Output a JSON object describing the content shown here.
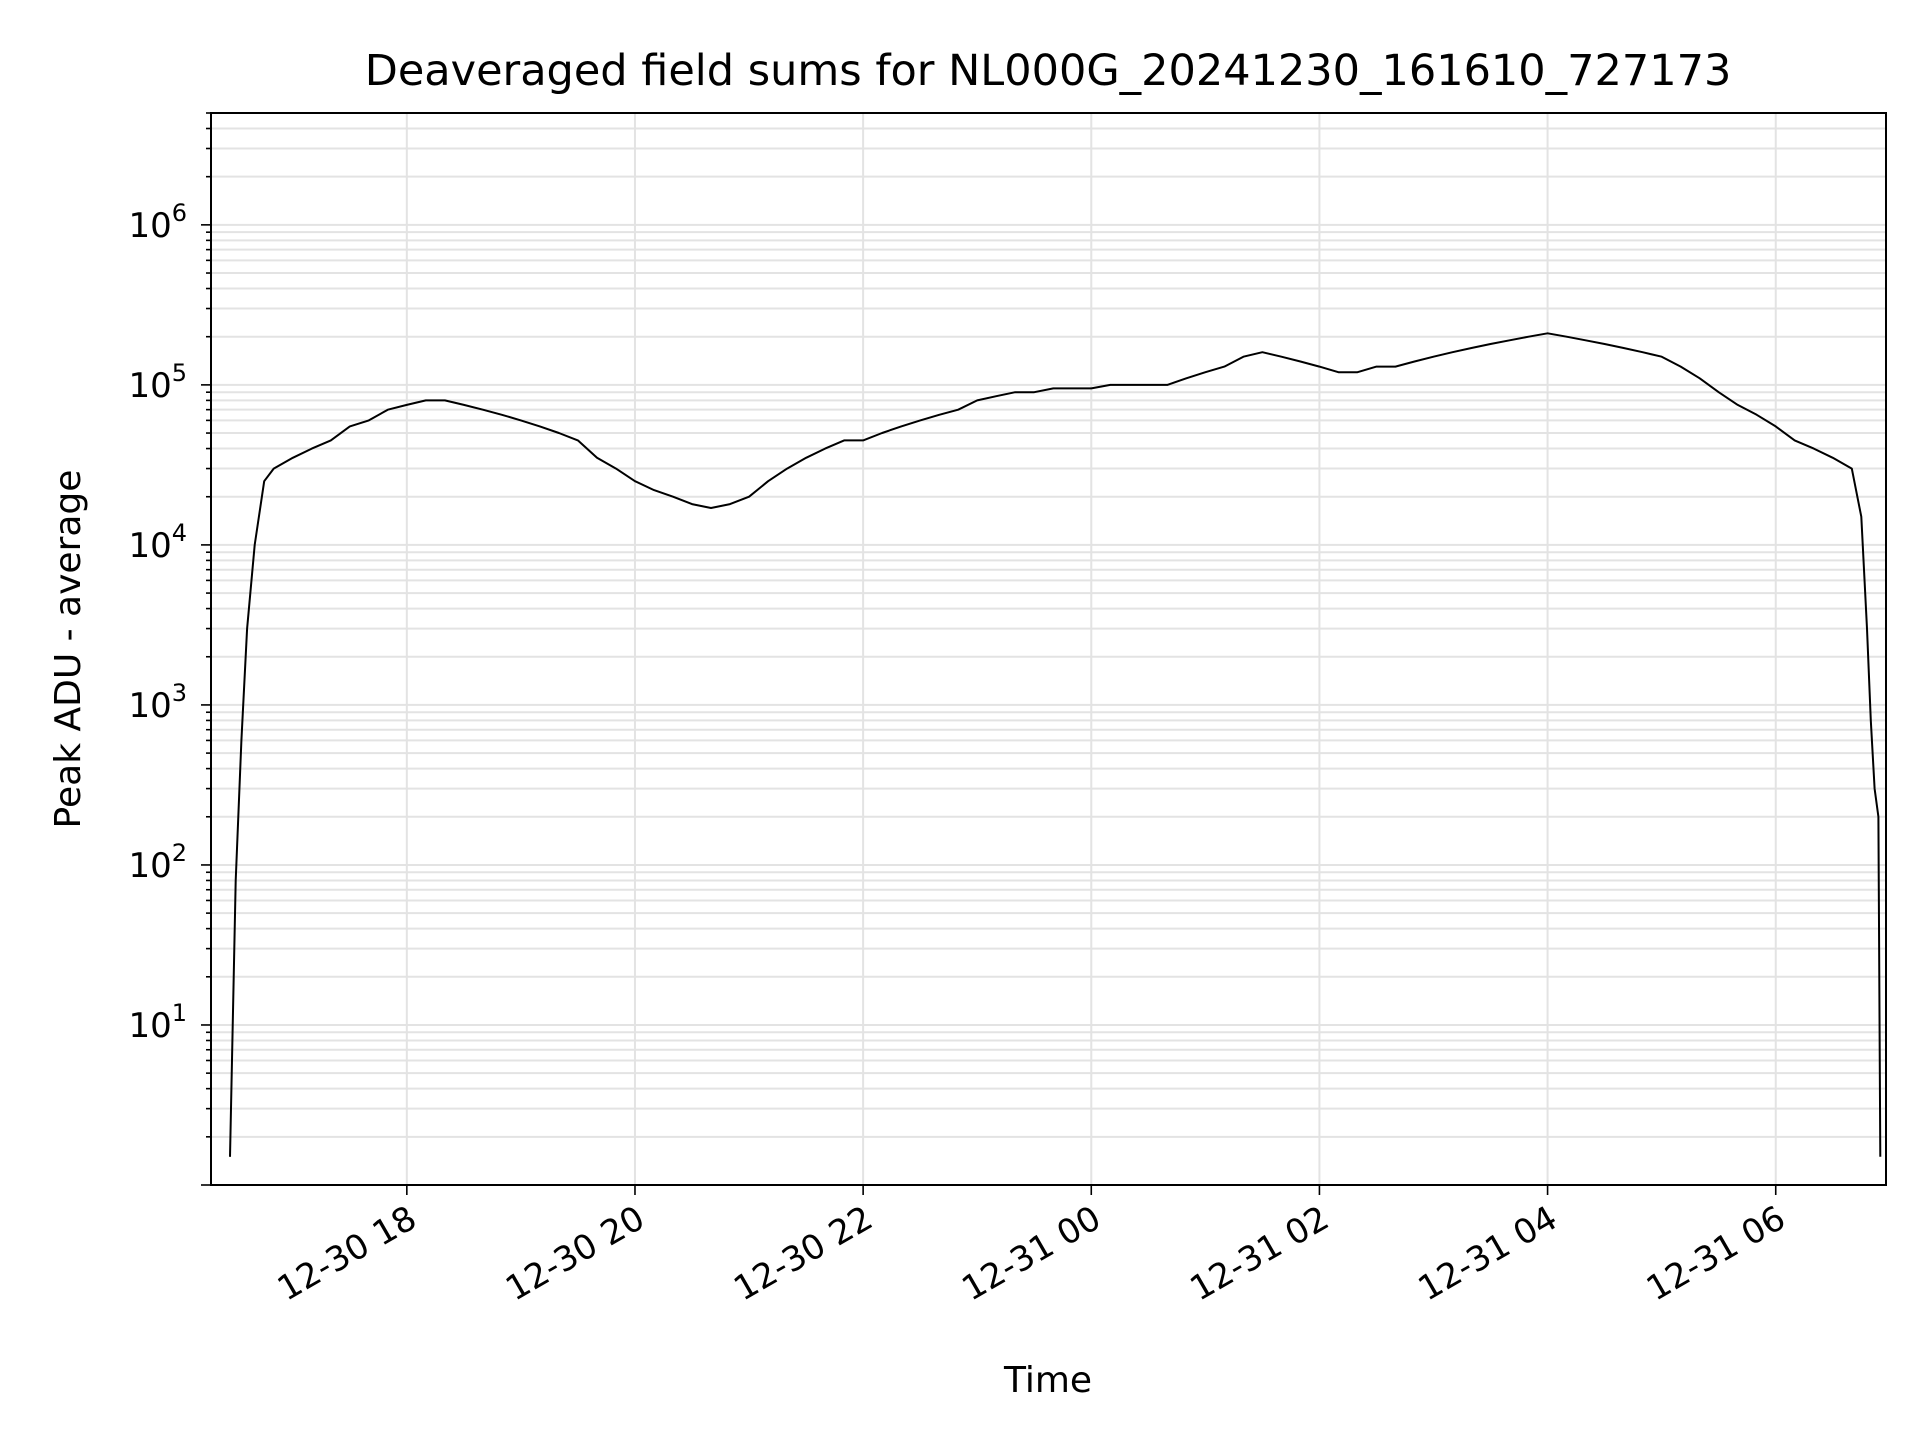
{
  "chart_data": {
    "type": "line",
    "title": "Deaveraged field sums for NL000G_20241230_161610_727173",
    "xlabel": "Time",
    "ylabel": "Peak ADU - average",
    "yscale": "log",
    "ylim": [
      1,
      5000000.0
    ],
    "xlim": [
      "12-30 16:17",
      "12-31 06:58"
    ],
    "grid": true,
    "line_color": "#000000",
    "xtick_labels": [
      "12-30 18",
      "12-30 20",
      "12-30 22",
      "12-31 00",
      "12-31 02",
      "12-31 04",
      "12-31 06"
    ],
    "ytick_labels": [
      {
        "base": "10",
        "exp": "1"
      },
      {
        "base": "10",
        "exp": "2"
      },
      {
        "base": "10",
        "exp": "3"
      },
      {
        "base": "10",
        "exp": "4"
      },
      {
        "base": "10",
        "exp": "5"
      },
      {
        "base": "10",
        "exp": "6"
      }
    ],
    "series": [
      {
        "x": [
          "12-30 16:27",
          "12-30 16:30",
          "12-30 16:33",
          "12-30 16:36",
          "12-30 16:40",
          "12-30 16:45",
          "12-30 16:50",
          "12-30 17:00",
          "12-30 17:10",
          "12-30 17:20",
          "12-30 17:30",
          "12-30 17:40",
          "12-30 17:50",
          "12-30 18:00",
          "12-30 18:10",
          "12-30 18:20",
          "12-30 18:30",
          "12-30 18:40",
          "12-30 18:50",
          "12-30 19:00",
          "12-30 19:10",
          "12-30 19:20",
          "12-30 19:30",
          "12-30 19:40",
          "12-30 19:50",
          "12-30 20:00",
          "12-30 20:10",
          "12-30 20:20",
          "12-30 20:30",
          "12-30 20:40",
          "12-30 20:50",
          "12-30 21:00",
          "12-30 21:10",
          "12-30 21:20",
          "12-30 21:30",
          "12-30 21:40",
          "12-30 21:50",
          "12-30 22:00",
          "12-30 22:10",
          "12-30 22:20",
          "12-30 22:30",
          "12-30 22:40",
          "12-30 22:50",
          "12-30 23:00",
          "12-30 23:10",
          "12-30 23:20",
          "12-30 23:30",
          "12-30 23:40",
          "12-30 23:50",
          "12-31 00:00",
          "12-31 00:10",
          "12-31 00:20",
          "12-31 00:30",
          "12-31 00:40",
          "12-31 00:50",
          "12-31 01:00",
          "12-31 01:10",
          "12-31 01:20",
          "12-31 01:30",
          "12-31 01:40",
          "12-31 01:50",
          "12-31 02:00",
          "12-31 02:10",
          "12-31 02:20",
          "12-31 02:30",
          "12-31 02:40",
          "12-31 02:50",
          "12-31 03:00",
          "12-31 03:10",
          "12-31 03:20",
          "12-31 03:30",
          "12-31 03:40",
          "12-31 03:50",
          "12-31 04:00",
          "12-31 04:10",
          "12-31 04:20",
          "12-31 04:30",
          "12-31 04:40",
          "12-31 04:50",
          "12-31 05:00",
          "12-31 05:10",
          "12-31 05:20",
          "12-31 05:30",
          "12-31 05:40",
          "12-31 05:50",
          "12-31 06:00",
          "12-31 06:10",
          "12-31 06:20",
          "12-31 06:30",
          "12-31 06:40",
          "12-31 06:45",
          "12-31 06:48",
          "12-31 06:50",
          "12-31 06:52",
          "12-31 06:54",
          "12-31 06:55"
        ],
        "y": [
          1.5,
          80,
          600,
          3000,
          10000,
          25000,
          30000,
          35000,
          40000,
          45000,
          55000,
          60000,
          70000,
          75000,
          80000,
          80000,
          75000,
          70000,
          65000,
          60000,
          55000,
          50000,
          45000,
          35000,
          30000,
          25000,
          22000,
          20000,
          18000,
          17000,
          18000,
          20000,
          25000,
          30000,
          35000,
          40000,
          45000,
          45000,
          50000,
          55000,
          60000,
          65000,
          70000,
          80000,
          85000,
          90000,
          90000,
          95000,
          95000,
          95000,
          100000,
          100000,
          100000,
          100000,
          110000,
          120000,
          130000,
          150000,
          160000,
          150000,
          140000,
          130000,
          120000,
          120000,
          130000,
          130000,
          140000,
          150000,
          160000,
          170000,
          180000,
          190000,
          200000,
          210000,
          200000,
          190000,
          180000,
          170000,
          160000,
          150000,
          130000,
          110000,
          90000,
          75000,
          65000,
          55000,
          45000,
          40000,
          35000,
          30000,
          15000,
          3000,
          800,
          300,
          200,
          1.5
        ]
      }
    ]
  }
}
